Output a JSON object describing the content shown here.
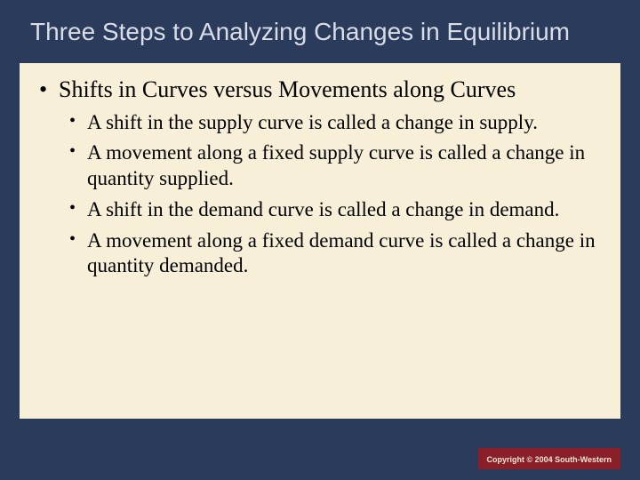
{
  "slide": {
    "background_color": "#2a3b5c",
    "title": {
      "text": "Three Steps to Analyzing Changes in Equilibrium",
      "font_family": "Arial",
      "font_size": 28,
      "color": "#d9dde6"
    },
    "content": {
      "background_color": "#f8efd9",
      "text_color": "#000000",
      "lvl1_font_size": 26,
      "lvl2_font_size": 23,
      "heading": "Shifts in Curves versus Movements along Curves",
      "bullets": [
        "A shift in the supply curve is called a change in supply.",
        "A movement along a fixed supply curve is called a change in quantity supplied.",
        "A shift in the demand curve is called a change in demand.",
        "A movement along a fixed demand curve is called a change in quantity demanded."
      ]
    },
    "copyright": {
      "text": "Copyright © 2004 South-Western",
      "background_color": "#8a1f2a",
      "text_color": "#f0e6d0",
      "font_size": 9
    }
  }
}
